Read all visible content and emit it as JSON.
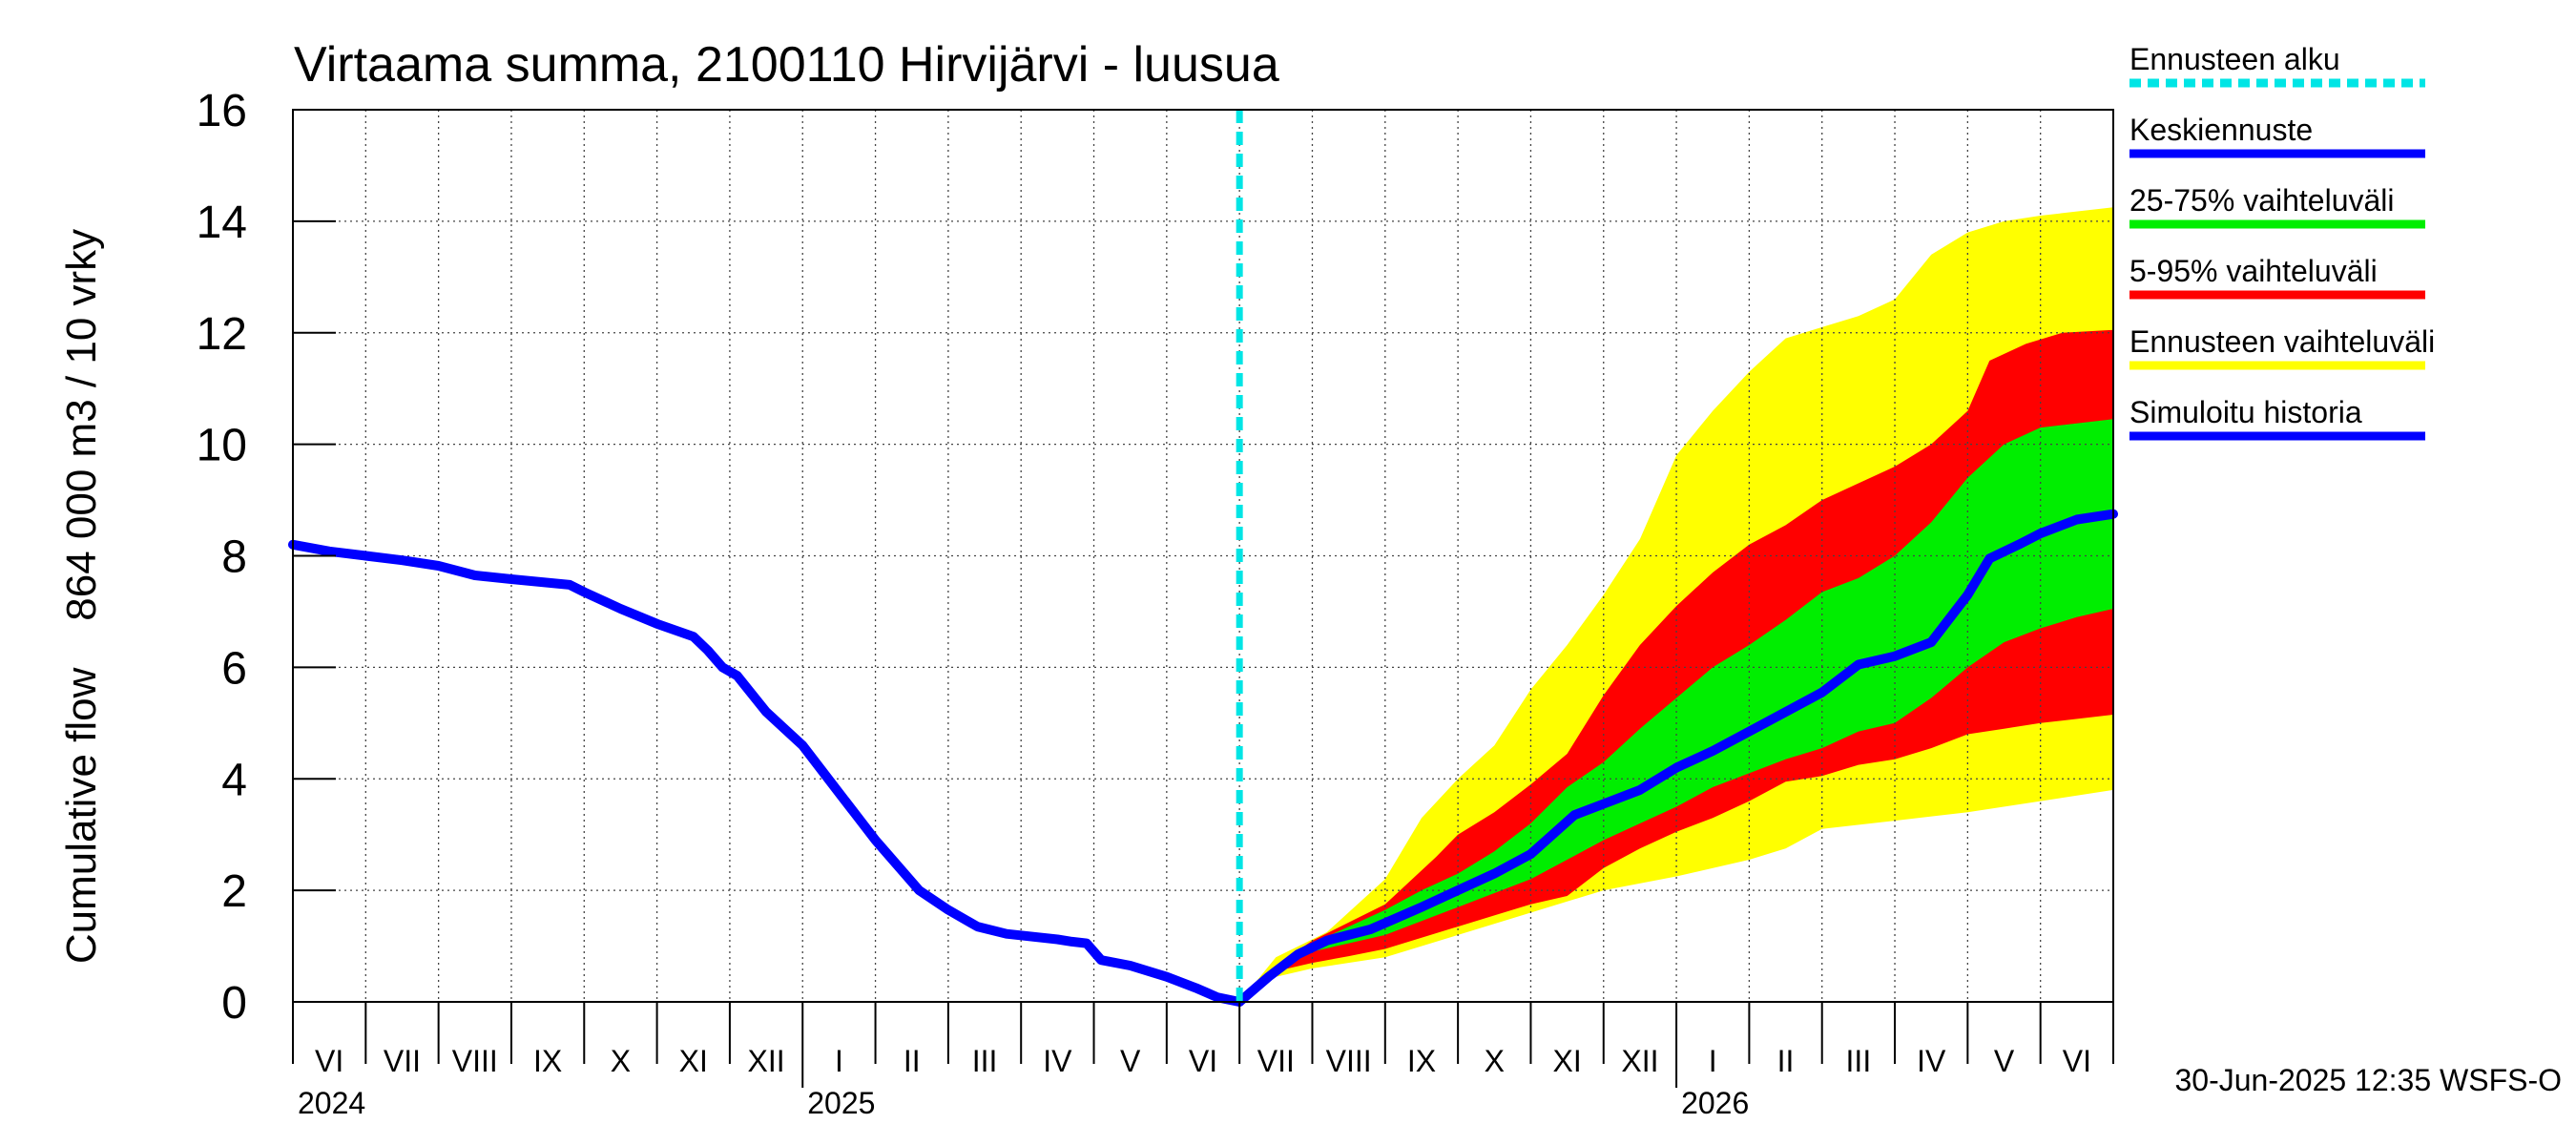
{
  "chart_data": {
    "type": "area",
    "title": "Virtaama summa, 2100110 Hirvijärvi - luusua",
    "ylabel": "Cumulative flow    864 000 m3 / 10 vrky",
    "xlabel": "",
    "ylim": [
      0,
      16
    ],
    "yticks": [
      "0",
      "2",
      "4",
      "6",
      "8",
      "10",
      "12",
      "14",
      "16"
    ],
    "grid": true,
    "legend_position": "right",
    "month_labels": [
      "VI",
      "VII",
      "VIII",
      "IX",
      "X",
      "XI",
      "XII",
      "I",
      "II",
      "III",
      "IV",
      "V",
      "VI",
      "VII",
      "VIII",
      "IX",
      "X",
      "XI",
      "XII",
      "I",
      "II",
      "III",
      "IV",
      "V",
      "VI"
    ],
    "year_labels": [
      {
        "label": "2024",
        "month_index": 0
      },
      {
        "label": "2025",
        "month_index": 7
      },
      {
        "label": "2026",
        "month_index": 19
      }
    ],
    "forecast_start_month": 13,
    "x_unit": "months since start of June 2024",
    "legend": [
      {
        "label": "Ennusteen alku",
        "color": "#00e5e5",
        "style": "dashed"
      },
      {
        "label": "Keskiennuste",
        "color": "#0000ff",
        "style": "solid"
      },
      {
        "label": "25-75% vaihteluväli",
        "color": "#00ee00",
        "style": "solid"
      },
      {
        "label": "5-95% vaihteluväli",
        "color": "#ff0000",
        "style": "solid"
      },
      {
        "label": "Ennusteen vaihteluväli",
        "color": "#ffff00",
        "style": "solid"
      },
      {
        "label": "Simuloitu historia",
        "color": "#0000ff",
        "style": "solid"
      }
    ],
    "series": [
      {
        "name": "Simuloitu historia",
        "color": "#0000ff",
        "points": [
          [
            0,
            8.2
          ],
          [
            0.5,
            8.08
          ],
          [
            1,
            8.0
          ],
          [
            1.5,
            7.92
          ],
          [
            2,
            7.82
          ],
          [
            2.5,
            7.65
          ],
          [
            3,
            7.58
          ],
          [
            3.8,
            7.48
          ],
          [
            4,
            7.35
          ],
          [
            4.5,
            7.05
          ],
          [
            5,
            6.78
          ],
          [
            5.5,
            6.55
          ],
          [
            5.7,
            6.3
          ],
          [
            5.9,
            6.0
          ],
          [
            6.1,
            5.85
          ],
          [
            6.5,
            5.2
          ],
          [
            7,
            4.6
          ],
          [
            7.5,
            3.75
          ],
          [
            8,
            2.9
          ],
          [
            8.6,
            2.0
          ],
          [
            9,
            1.65
          ],
          [
            9.4,
            1.35
          ],
          [
            9.8,
            1.22
          ],
          [
            10.5,
            1.12
          ],
          [
            10.7,
            1.08
          ],
          [
            10.9,
            1.05
          ],
          [
            11.1,
            0.75
          ],
          [
            11.5,
            0.65
          ],
          [
            12,
            0.45
          ],
          [
            12.4,
            0.25
          ],
          [
            12.7,
            0.08
          ],
          [
            13,
            0.0
          ]
        ]
      },
      {
        "name": "Keskiennuste",
        "color": "#0000ff",
        "points": [
          [
            13,
            0.0
          ],
          [
            13.4,
            0.45
          ],
          [
            13.8,
            0.85
          ],
          [
            14.2,
            1.1
          ],
          [
            14.8,
            1.3
          ],
          [
            15.5,
            1.7
          ],
          [
            16,
            2.0
          ],
          [
            16.5,
            2.3
          ],
          [
            17,
            2.65
          ],
          [
            17.3,
            3.0
          ],
          [
            17.6,
            3.35
          ],
          [
            18,
            3.55
          ],
          [
            18.5,
            3.8
          ],
          [
            19,
            4.2
          ],
          [
            19.5,
            4.5
          ],
          [
            20,
            4.85
          ],
          [
            20.5,
            5.2
          ],
          [
            21,
            5.55
          ],
          [
            21.5,
            6.05
          ],
          [
            22,
            6.2
          ],
          [
            22.5,
            6.45
          ],
          [
            23,
            7.3
          ],
          [
            23.3,
            7.95
          ],
          [
            23.7,
            8.2
          ],
          [
            24,
            8.4
          ],
          [
            24.5,
            8.65
          ],
          [
            25,
            8.75
          ]
        ]
      }
    ],
    "bands": [
      {
        "name": "Ennusteen vaihteluväli",
        "color": "#ffff00",
        "upper": [
          [
            13,
            0.0
          ],
          [
            13.5,
            0.8
          ],
          [
            14.2,
            1.25
          ],
          [
            15,
            2.2
          ],
          [
            15.5,
            3.3
          ],
          [
            16,
            4.0
          ],
          [
            16.5,
            4.6
          ],
          [
            17,
            5.6
          ],
          [
            17.5,
            6.4
          ],
          [
            18,
            7.3
          ],
          [
            18.5,
            8.3
          ],
          [
            19,
            9.8
          ],
          [
            19.5,
            10.6
          ],
          [
            20,
            11.3
          ],
          [
            20.5,
            11.9
          ],
          [
            21,
            12.1
          ],
          [
            21.5,
            12.3
          ],
          [
            22,
            12.6
          ],
          [
            22.5,
            13.4
          ],
          [
            23,
            13.8
          ],
          [
            23.5,
            14.0
          ],
          [
            24,
            14.1
          ],
          [
            25,
            14.25
          ]
        ],
        "lower": [
          [
            13,
            0.0
          ],
          [
            13.5,
            0.45
          ],
          [
            14,
            0.6
          ],
          [
            15,
            0.8
          ],
          [
            16,
            1.2
          ],
          [
            17,
            1.6
          ],
          [
            18,
            2.0
          ],
          [
            19,
            2.25
          ],
          [
            20,
            2.55
          ],
          [
            20.5,
            2.75
          ],
          [
            21,
            3.1
          ],
          [
            22,
            3.25
          ],
          [
            23,
            3.4
          ],
          [
            24,
            3.6
          ],
          [
            25,
            3.8
          ]
        ]
      },
      {
        "name": "5-95% vaihteluväli",
        "color": "#ff0000",
        "upper": [
          [
            13,
            0.0
          ],
          [
            13.5,
            0.65
          ],
          [
            14,
            1.1
          ],
          [
            15,
            1.75
          ],
          [
            15.7,
            2.6
          ],
          [
            16,
            3.0
          ],
          [
            16.5,
            3.4
          ],
          [
            17,
            3.9
          ],
          [
            17.5,
            4.45
          ],
          [
            18,
            5.5
          ],
          [
            18.5,
            6.4
          ],
          [
            19,
            7.1
          ],
          [
            19.5,
            7.7
          ],
          [
            20,
            8.2
          ],
          [
            20.5,
            8.55
          ],
          [
            21,
            9.0
          ],
          [
            21.5,
            9.3
          ],
          [
            22,
            9.6
          ],
          [
            22.5,
            10.0
          ],
          [
            23,
            10.6
          ],
          [
            23.3,
            11.5
          ],
          [
            23.8,
            11.8
          ],
          [
            24.3,
            12.0
          ],
          [
            25,
            12.05
          ]
        ],
        "lower": [
          [
            13,
            0.0
          ],
          [
            13.5,
            0.55
          ],
          [
            14,
            0.7
          ],
          [
            14.5,
            0.82
          ],
          [
            15,
            0.95
          ],
          [
            15.5,
            1.15
          ],
          [
            16,
            1.35
          ],
          [
            16.5,
            1.55
          ],
          [
            17,
            1.75
          ],
          [
            17.5,
            1.9
          ],
          [
            18,
            2.4
          ],
          [
            18.5,
            2.75
          ],
          [
            19,
            3.05
          ],
          [
            19.5,
            3.3
          ],
          [
            20,
            3.6
          ],
          [
            20.5,
            3.95
          ],
          [
            21,
            4.05
          ],
          [
            21.5,
            4.25
          ],
          [
            22,
            4.35
          ],
          [
            22.5,
            4.55
          ],
          [
            23,
            4.8
          ],
          [
            23.5,
            4.9
          ],
          [
            24,
            5.0
          ],
          [
            25,
            5.15
          ]
        ]
      },
      {
        "name": "25-75% vaihteluväli",
        "color": "#00ee00",
        "upper": [
          [
            13,
            0.0
          ],
          [
            13.5,
            0.6
          ],
          [
            14,
            1.05
          ],
          [
            14.5,
            1.35
          ],
          [
            15,
            1.65
          ],
          [
            15.5,
            2.0
          ],
          [
            16,
            2.3
          ],
          [
            16.5,
            2.7
          ],
          [
            17,
            3.2
          ],
          [
            17.5,
            3.85
          ],
          [
            18,
            4.3
          ],
          [
            18.5,
            4.9
          ],
          [
            19,
            5.45
          ],
          [
            19.5,
            6.0
          ],
          [
            20,
            6.4
          ],
          [
            20.5,
            6.85
          ],
          [
            21,
            7.35
          ],
          [
            21.5,
            7.6
          ],
          [
            22,
            8.0
          ],
          [
            22.5,
            8.6
          ],
          [
            23,
            9.4
          ],
          [
            23.5,
            10.0
          ],
          [
            24,
            10.3
          ],
          [
            25,
            10.45
          ]
        ],
        "lower": [
          [
            13,
            0.0
          ],
          [
            13.5,
            0.55
          ],
          [
            14,
            0.9
          ],
          [
            14.5,
            1.05
          ],
          [
            15,
            1.2
          ],
          [
            15.5,
            1.45
          ],
          [
            16,
            1.7
          ],
          [
            16.5,
            1.95
          ],
          [
            17,
            2.2
          ],
          [
            17.5,
            2.55
          ],
          [
            18,
            2.9
          ],
          [
            18.5,
            3.2
          ],
          [
            19,
            3.5
          ],
          [
            19.5,
            3.85
          ],
          [
            20,
            4.1
          ],
          [
            20.5,
            4.35
          ],
          [
            21,
            4.55
          ],
          [
            21.5,
            4.85
          ],
          [
            22,
            5.0
          ],
          [
            22.5,
            5.45
          ],
          [
            23,
            6.0
          ],
          [
            23.5,
            6.45
          ],
          [
            24,
            6.7
          ],
          [
            24.5,
            6.9
          ],
          [
            25,
            7.05
          ]
        ]
      }
    ]
  },
  "footer": {
    "timestamp": "30-Jun-2025 12:35 WSFS-O"
  }
}
